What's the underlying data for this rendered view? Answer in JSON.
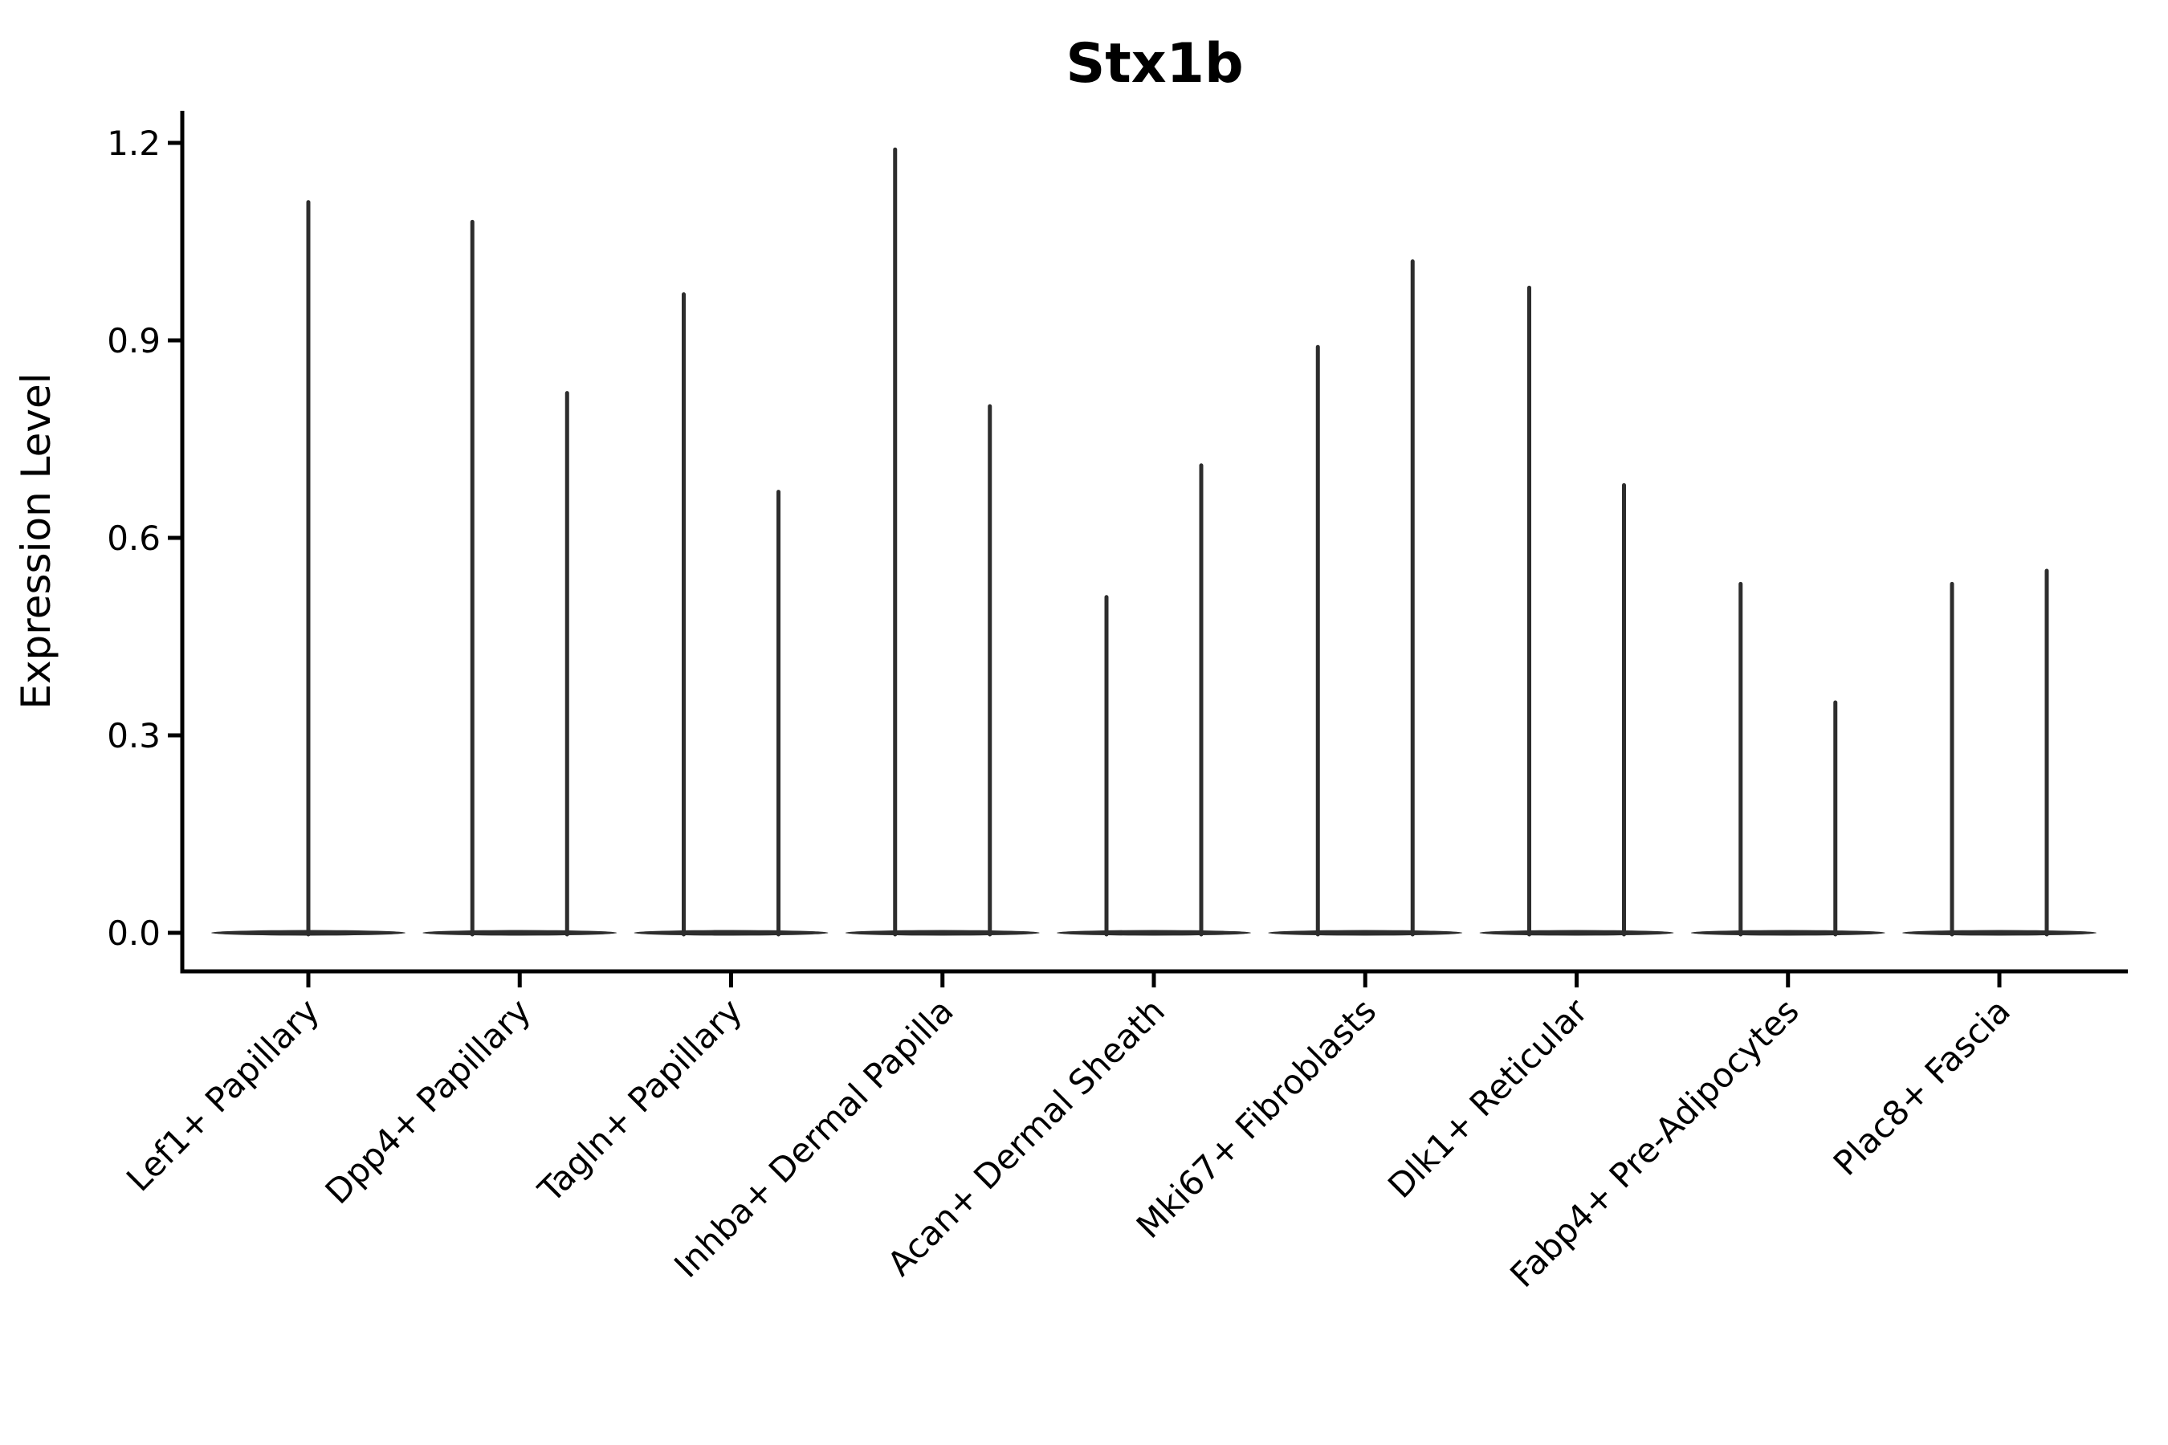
{
  "figure": {
    "title": "Stx1b",
    "ylabel": "Expression Level"
  },
  "chart_data": {
    "type": "violin",
    "title": "Stx1b",
    "xlabel": "",
    "ylabel": "Expression Level",
    "ylim": [
      -0.06,
      1.25
    ],
    "yticks": [
      0.0,
      0.3,
      0.6,
      0.9,
      1.2
    ],
    "ytick_labels": [
      "0.0",
      "0.3",
      "0.6",
      "0.9",
      "1.2"
    ],
    "grid": false,
    "legend_position": "none",
    "violin_color": "#2d2d2d",
    "axis_color": "#000000",
    "categories": [
      "Lef1+ Papillary",
      "Dpp4+ Papillary",
      "Tagln+ Papillary",
      "Inhba+ Dermal Papilla",
      "Acan+ Dermal Sheath",
      "Mki67+ Fibroblasts",
      "Dlk1+ Reticular",
      "Fabp4+ Pre-Adipocytes",
      "Plac8+ Fascia"
    ],
    "series": [
      {
        "category": "Lef1+ Papillary",
        "violin_max_values": [
          1.11
        ]
      },
      {
        "category": "Dpp4+ Papillary",
        "violin_max_values": [
          1.08,
          0.82
        ]
      },
      {
        "category": "Tagln+ Papillary",
        "violin_max_values": [
          0.97,
          0.67
        ]
      },
      {
        "category": "Inhba+ Dermal Papilla",
        "violin_max_values": [
          1.19,
          0.8
        ]
      },
      {
        "category": "Acan+ Dermal Sheath",
        "violin_max_values": [
          0.51,
          0.71
        ]
      },
      {
        "category": "Mki67+ Fibroblasts",
        "violin_max_values": [
          0.89,
          1.02
        ]
      },
      {
        "category": "Dlk1+ Reticular",
        "violin_max_values": [
          0.98,
          0.68
        ]
      },
      {
        "category": "Fabp4+ Pre-Adipocytes",
        "violin_max_values": [
          0.53,
          0.35
        ]
      },
      {
        "category": "Plac8+ Fascia",
        "violin_max_values": [
          0.53,
          0.55
        ]
      }
    ]
  }
}
